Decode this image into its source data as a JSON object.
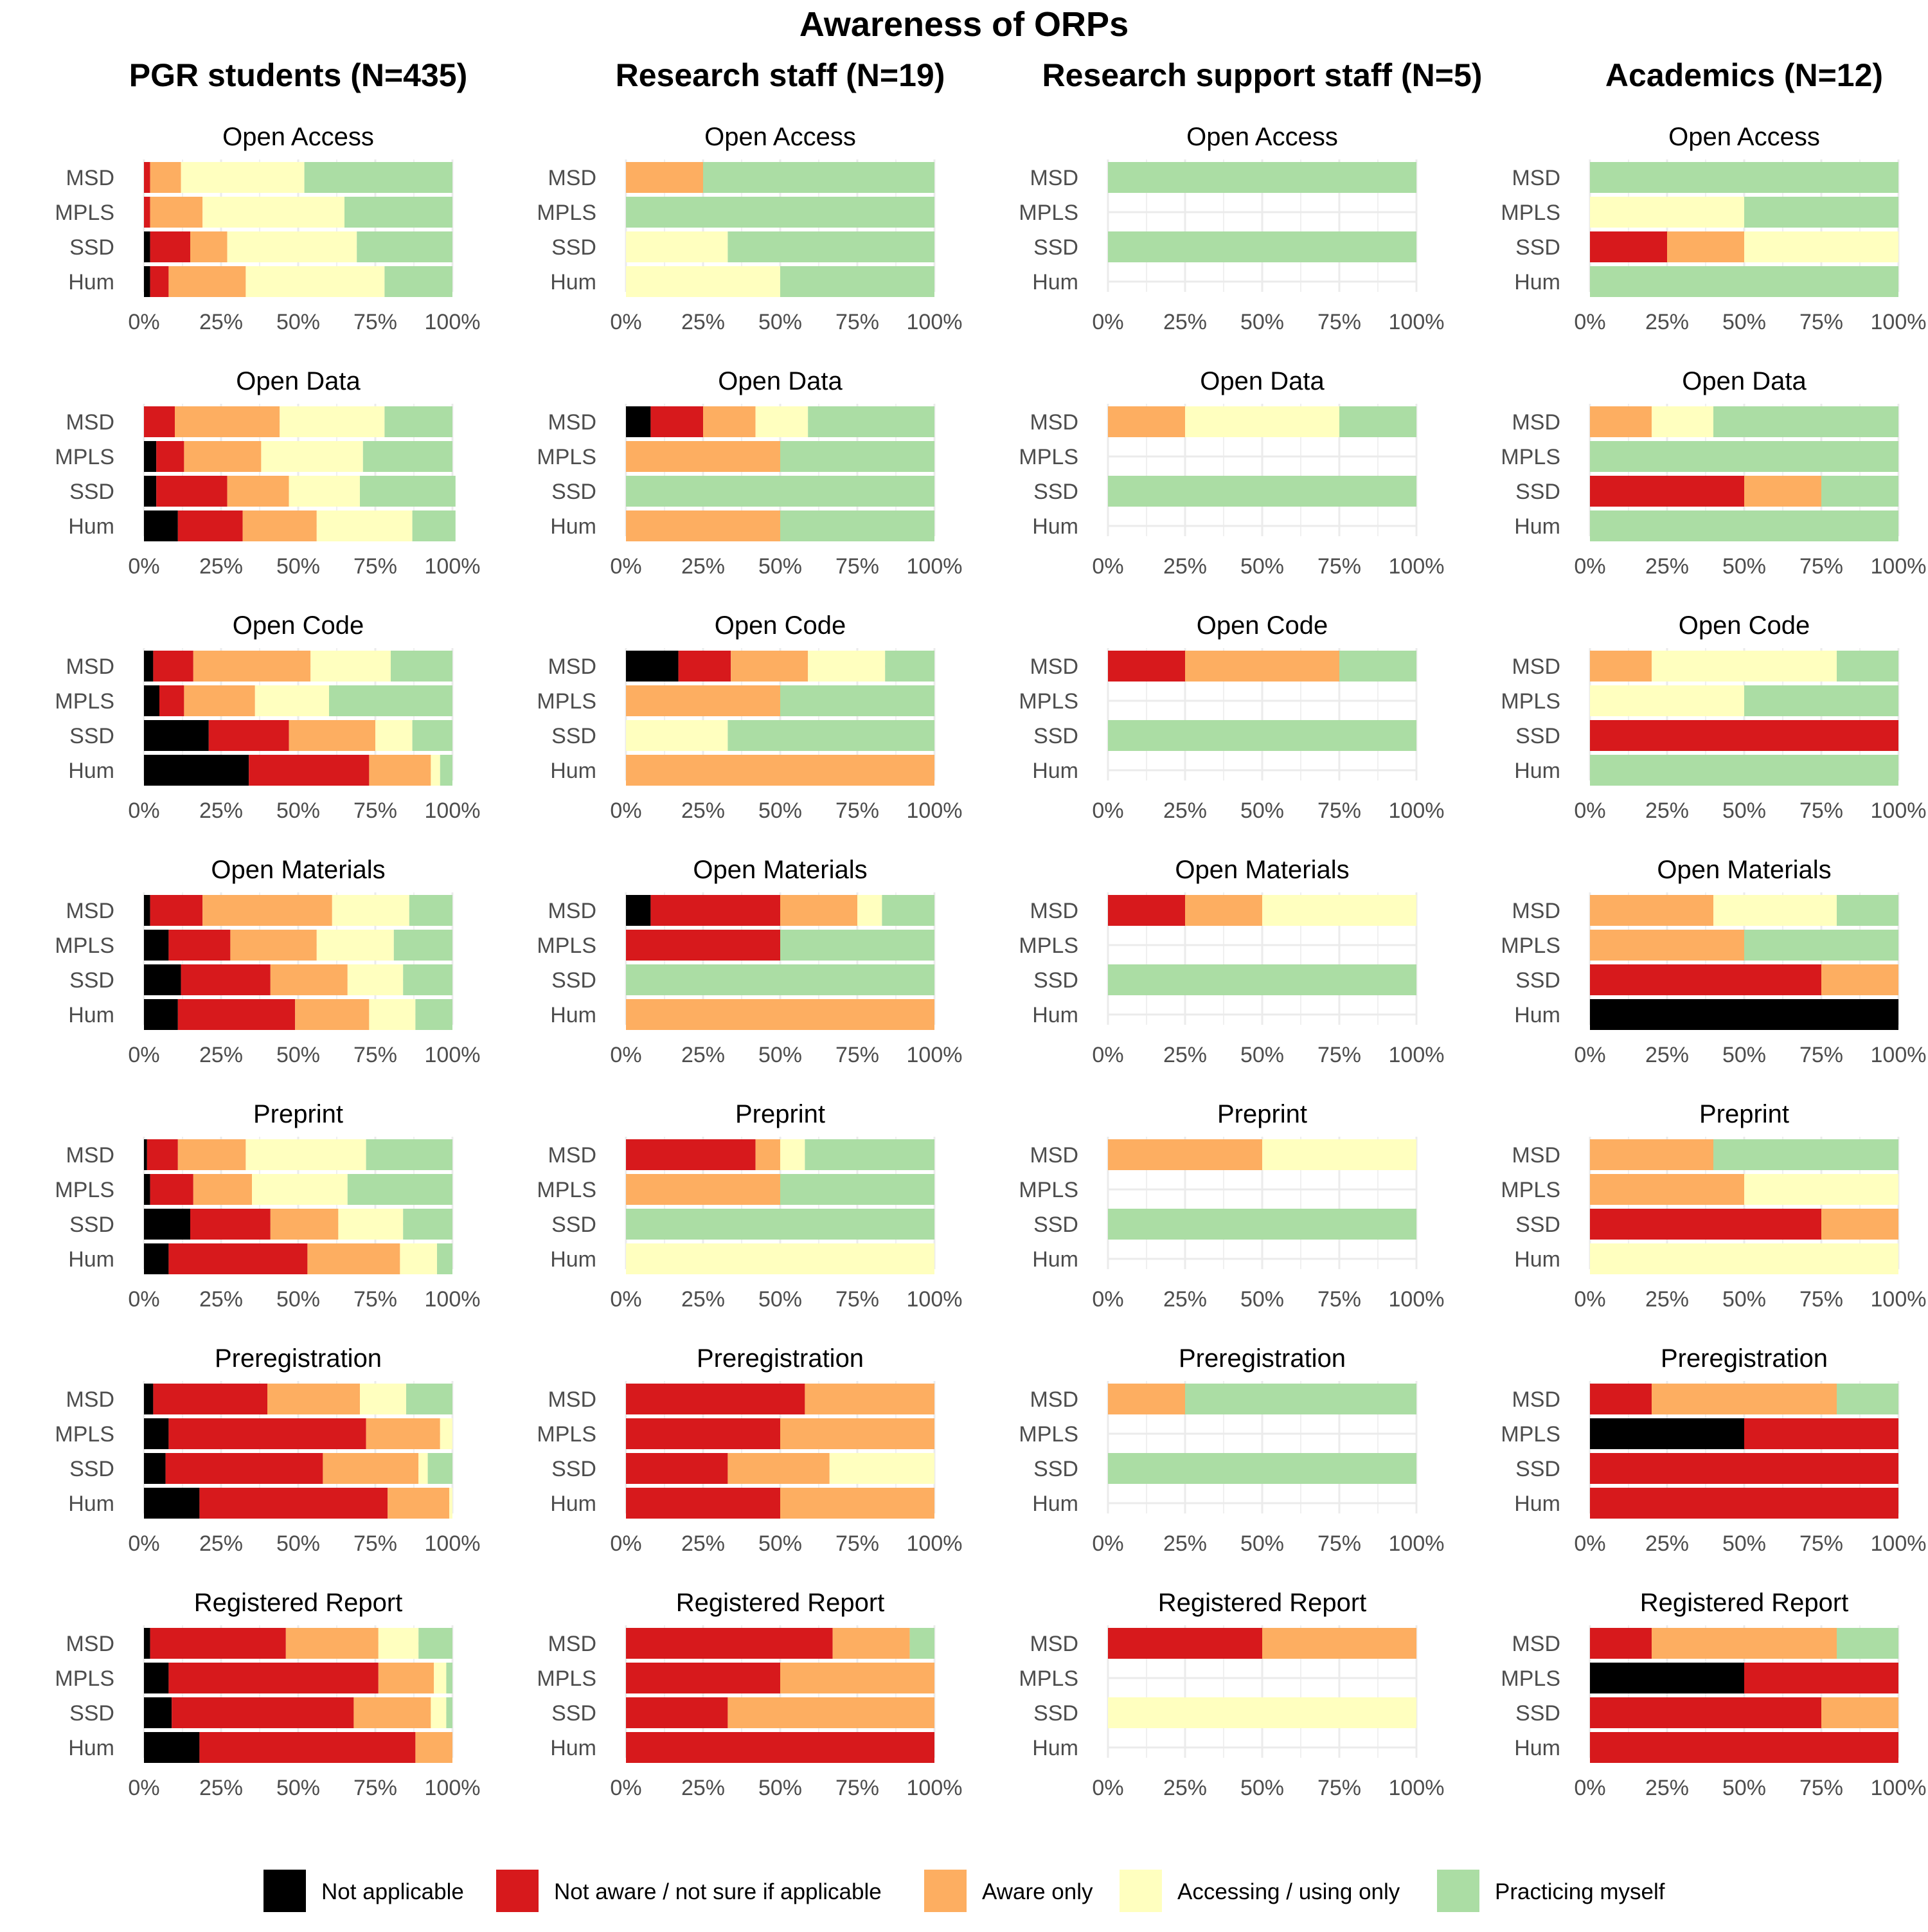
{
  "title": "Awareness of ORPs",
  "columns": [
    "PGR students (N=435)",
    "Research staff (N=19)",
    "Research support staff (N=5)",
    "Academics (N=12)"
  ],
  "rows": [
    "Open Access",
    "Open Data",
    "Open Code",
    "Open Materials",
    "Preprint",
    "Preregistration",
    "Registered Report"
  ],
  "categories": [
    "MSD",
    "MPLS",
    "SSD",
    "Hum"
  ],
  "x_ticks": [
    "0%",
    "25%",
    "50%",
    "75%",
    "100%"
  ],
  "legend": [
    {
      "label": "Not applicable",
      "color": "#000000"
    },
    {
      "label": "Not aware / not sure if applicable",
      "color": "#d7191c"
    },
    {
      "label": "Aware only",
      "color": "#fdae61"
    },
    {
      "label": "Accessing / using only",
      "color": "#ffffbf"
    },
    {
      "label": "Practicing myself",
      "color": "#abdda4"
    }
  ],
  "chart_data": {
    "type": "bar",
    "orientation": "horizontal",
    "stacked": "percent",
    "xlim": [
      0,
      100
    ],
    "legend_position": "bottom",
    "grid": true,
    "series_order": [
      "Not applicable",
      "Not aware / not sure if applicable",
      "Aware only",
      "Accessing / using only",
      "Practicing myself"
    ],
    "panels": [
      {
        "column": 0,
        "row": 0,
        "values": [
          [
            0,
            2,
            10,
            40,
            48
          ],
          [
            0,
            2,
            17,
            46,
            35
          ],
          [
            2,
            13,
            12,
            42,
            31
          ],
          [
            2,
            6,
            25,
            45,
            22
          ]
        ]
      },
      {
        "column": 1,
        "row": 0,
        "values": [
          [
            0,
            0,
            25,
            0,
            75
          ],
          [
            0,
            0,
            0,
            0,
            100
          ],
          [
            0,
            0,
            0,
            33,
            67
          ],
          [
            0,
            0,
            0,
            50,
            50
          ]
        ]
      },
      {
        "column": 2,
        "row": 0,
        "values": [
          [
            0,
            0,
            0,
            0,
            100
          ],
          null,
          [
            0,
            0,
            0,
            0,
            100
          ],
          null
        ]
      },
      {
        "column": 3,
        "row": 0,
        "values": [
          [
            0,
            0,
            0,
            0,
            100
          ],
          [
            0,
            0,
            0,
            50,
            50
          ],
          [
            0,
            25,
            25,
            50,
            0
          ],
          [
            0,
            0,
            0,
            0,
            100
          ]
        ]
      },
      {
        "column": 0,
        "row": 1,
        "values": [
          [
            0,
            10,
            34,
            34,
            22
          ],
          [
            4,
            9,
            25,
            33,
            29
          ],
          [
            4,
            23,
            20,
            23,
            31
          ],
          [
            11,
            21,
            24,
            31,
            14
          ]
        ]
      },
      {
        "column": 1,
        "row": 1,
        "values": [
          [
            8,
            17,
            17,
            17,
            41
          ],
          [
            0,
            0,
            50,
            0,
            50
          ],
          [
            0,
            0,
            0,
            0,
            100
          ],
          [
            0,
            0,
            50,
            0,
            50
          ]
        ]
      },
      {
        "column": 2,
        "row": 1,
        "values": [
          [
            0,
            0,
            25,
            50,
            25
          ],
          null,
          [
            0,
            0,
            0,
            0,
            100
          ],
          null
        ]
      },
      {
        "column": 3,
        "row": 1,
        "values": [
          [
            0,
            0,
            20,
            20,
            60
          ],
          [
            0,
            0,
            0,
            0,
            100
          ],
          [
            0,
            50,
            25,
            0,
            25
          ],
          [
            0,
            0,
            0,
            0,
            100
          ]
        ]
      },
      {
        "column": 0,
        "row": 2,
        "values": [
          [
            3,
            13,
            38,
            26,
            20
          ],
          [
            5,
            8,
            23,
            24,
            40
          ],
          [
            21,
            26,
            28,
            12,
            13
          ],
          [
            34,
            39,
            20,
            3,
            4
          ]
        ]
      },
      {
        "column": 1,
        "row": 2,
        "values": [
          [
            17,
            17,
            25,
            25,
            16
          ],
          [
            0,
            0,
            50,
            0,
            50
          ],
          [
            0,
            0,
            0,
            33,
            67
          ],
          [
            0,
            0,
            100,
            0,
            0
          ]
        ]
      },
      {
        "column": 2,
        "row": 2,
        "values": [
          [
            0,
            25,
            50,
            0,
            25
          ],
          null,
          [
            0,
            0,
            0,
            0,
            100
          ],
          null
        ]
      },
      {
        "column": 3,
        "row": 2,
        "values": [
          [
            0,
            0,
            20,
            60,
            20
          ],
          [
            0,
            0,
            0,
            50,
            50
          ],
          [
            0,
            100,
            0,
            0,
            0
          ],
          [
            0,
            0,
            0,
            0,
            100
          ]
        ]
      },
      {
        "column": 0,
        "row": 3,
        "values": [
          [
            2,
            17,
            42,
            25,
            14
          ],
          [
            8,
            20,
            28,
            25,
            19
          ],
          [
            12,
            29,
            25,
            18,
            16
          ],
          [
            11,
            38,
            24,
            15,
            12
          ]
        ]
      },
      {
        "column": 1,
        "row": 3,
        "values": [
          [
            8,
            42,
            25,
            8,
            17
          ],
          [
            0,
            50,
            0,
            0,
            50
          ],
          [
            0,
            0,
            0,
            0,
            100
          ],
          [
            0,
            0,
            100,
            0,
            0
          ]
        ]
      },
      {
        "column": 2,
        "row": 3,
        "values": [
          [
            0,
            25,
            25,
            50,
            0
          ],
          null,
          [
            0,
            0,
            0,
            0,
            100
          ],
          null
        ]
      },
      {
        "column": 3,
        "row": 3,
        "values": [
          [
            0,
            0,
            40,
            40,
            20
          ],
          [
            0,
            0,
            50,
            0,
            50
          ],
          [
            0,
            75,
            25,
            0,
            0
          ],
          [
            100,
            0,
            0,
            0,
            0
          ]
        ]
      },
      {
        "column": 0,
        "row": 4,
        "values": [
          [
            1,
            10,
            22,
            39,
            28
          ],
          [
            2,
            14,
            19,
            31,
            34
          ],
          [
            15,
            26,
            22,
            21,
            16
          ],
          [
            8,
            45,
            30,
            12,
            5
          ]
        ]
      },
      {
        "column": 1,
        "row": 4,
        "values": [
          [
            0,
            42,
            8,
            8,
            42
          ],
          [
            0,
            0,
            50,
            0,
            50
          ],
          [
            0,
            0,
            0,
            0,
            100
          ],
          [
            0,
            0,
            0,
            100,
            0
          ]
        ]
      },
      {
        "column": 2,
        "row": 4,
        "values": [
          [
            0,
            0,
            50,
            50,
            0
          ],
          null,
          [
            0,
            0,
            0,
            0,
            100
          ],
          null
        ]
      },
      {
        "column": 3,
        "row": 4,
        "values": [
          [
            0,
            0,
            40,
            0,
            60
          ],
          [
            0,
            0,
            50,
            50,
            0
          ],
          [
            0,
            75,
            25,
            0,
            0
          ],
          [
            0,
            0,
            0,
            100,
            0
          ]
        ]
      },
      {
        "column": 0,
        "row": 5,
        "values": [
          [
            3,
            37,
            30,
            15,
            15
          ],
          [
            8,
            64,
            24,
            4,
            0
          ],
          [
            7,
            51,
            31,
            3,
            8
          ],
          [
            18,
            61,
            20,
            1,
            0
          ]
        ]
      },
      {
        "column": 1,
        "row": 5,
        "values": [
          [
            0,
            58,
            42,
            0,
            0
          ],
          [
            0,
            50,
            50,
            0,
            0
          ],
          [
            0,
            33,
            33,
            34,
            0
          ],
          [
            0,
            50,
            50,
            0,
            0
          ]
        ]
      },
      {
        "column": 2,
        "row": 5,
        "values": [
          [
            0,
            0,
            25,
            0,
            75
          ],
          null,
          [
            0,
            0,
            0,
            0,
            100
          ],
          null
        ]
      },
      {
        "column": 3,
        "row": 5,
        "values": [
          [
            0,
            20,
            60,
            0,
            20
          ],
          [
            50,
            50,
            0,
            0,
            0
          ],
          [
            0,
            100,
            0,
            0,
            0
          ],
          [
            0,
            100,
            0,
            0,
            0
          ]
        ]
      },
      {
        "column": 0,
        "row": 6,
        "values": [
          [
            2,
            44,
            30,
            13,
            11
          ],
          [
            8,
            68,
            18,
            4,
            2
          ],
          [
            9,
            59,
            25,
            5,
            2
          ],
          [
            18,
            70,
            12,
            0,
            0
          ]
        ]
      },
      {
        "column": 1,
        "row": 6,
        "values": [
          [
            0,
            67,
            25,
            0,
            8
          ],
          [
            0,
            50,
            50,
            0,
            0
          ],
          [
            0,
            33,
            67,
            0,
            0
          ],
          [
            0,
            100,
            0,
            0,
            0
          ]
        ]
      },
      {
        "column": 2,
        "row": 6,
        "values": [
          [
            0,
            50,
            50,
            0,
            0
          ],
          null,
          [
            0,
            0,
            0,
            100,
            0
          ],
          null
        ]
      },
      {
        "column": 3,
        "row": 6,
        "values": [
          [
            0,
            20,
            60,
            0,
            20
          ],
          [
            50,
            50,
            0,
            0,
            0
          ],
          [
            0,
            75,
            25,
            0,
            0
          ],
          [
            0,
            100,
            0,
            0,
            0
          ]
        ]
      }
    ]
  }
}
